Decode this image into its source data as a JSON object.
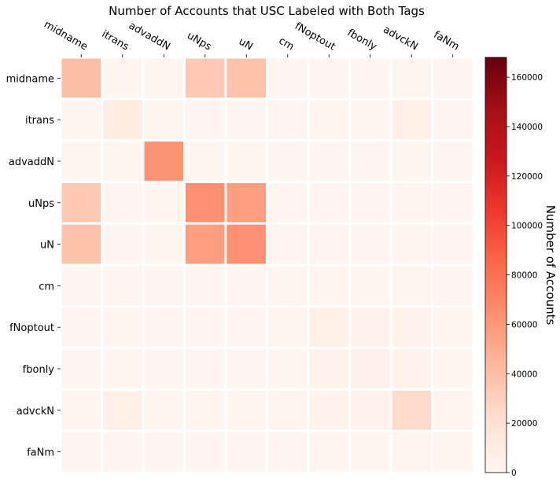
{
  "chart_data": {
    "type": "heatmap",
    "title": "Number of Accounts that USC Labeled with Both Tags",
    "x_categories": [
      "midname",
      "itrans",
      "advaddN",
      "uNps",
      "uN",
      "cm",
      "fNoptout",
      "fbonly",
      "advckN",
      "faNm"
    ],
    "y_categories": [
      "midname",
      "itrans",
      "advaddN",
      "uNps",
      "uN",
      "cm",
      "fNoptout",
      "fbonly",
      "advckN",
      "faNm"
    ],
    "values": [
      [
        40000,
        500,
        500,
        34000,
        38000,
        300,
        300,
        300,
        500,
        300
      ],
      [
        500,
        9000,
        500,
        1000,
        1000,
        800,
        1500,
        1500,
        6500,
        1000
      ],
      [
        500,
        500,
        62000,
        500,
        500,
        300,
        300,
        300,
        500,
        300
      ],
      [
        34000,
        1000,
        500,
        64000,
        57000,
        800,
        800,
        800,
        1500,
        800
      ],
      [
        38000,
        1000,
        500,
        57000,
        64000,
        800,
        800,
        800,
        1500,
        800
      ],
      [
        300,
        800,
        300,
        800,
        800,
        1200,
        1500,
        1500,
        2000,
        1000
      ],
      [
        300,
        1500,
        300,
        800,
        800,
        1500,
        6500,
        3500,
        3500,
        1500
      ],
      [
        300,
        1500,
        300,
        800,
        800,
        1500,
        3500,
        4000,
        3500,
        1500
      ],
      [
        500,
        6500,
        500,
        1500,
        1500,
        2000,
        3500,
        3500,
        24000,
        2000
      ],
      [
        300,
        1000,
        300,
        800,
        800,
        1000,
        1500,
        1500,
        2000,
        1500
      ]
    ],
    "colorbar": {
      "label": "Number of Accounts",
      "min": 0,
      "max": 168000,
      "ticks": [
        0,
        20000,
        40000,
        60000,
        80000,
        100000,
        120000,
        140000,
        160000
      ],
      "tick_labels": [
        "0",
        "20000",
        "40000",
        "60000",
        "80000",
        "100000",
        "120000",
        "140000",
        "160000"
      ]
    },
    "colormap": "Reds",
    "colormap_stops": [
      "#fff5f0",
      "#fee0d2",
      "#fcbba1",
      "#fc9272",
      "#fb6a4a",
      "#ef3b2c",
      "#cb181d",
      "#a50f15",
      "#67000d"
    ],
    "cell_border_color": "#ffffff"
  }
}
